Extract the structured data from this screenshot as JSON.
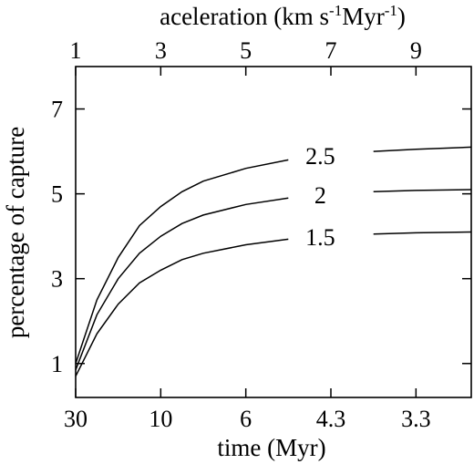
{
  "chart_data": {
    "type": "line",
    "title": "",
    "xlabel": "time (Myr)",
    "ylabel": "percentage of capture",
    "top_axis": {
      "label_main": "aceleration (km s",
      "label_exp1": "-1",
      "label_mid": "Myr",
      "label_exp2": "-1",
      "label_end": ")",
      "ticks": [
        "1",
        "3",
        "5",
        "7",
        "9"
      ],
      "range": [
        1,
        10.3
      ]
    },
    "x_ticks": [
      "30",
      "10",
      "6",
      "4.3",
      "3.3"
    ],
    "y_ticks": [
      1,
      3,
      5,
      7
    ],
    "ylim": [
      0.2,
      8
    ],
    "grid": false,
    "series": [
      {
        "name": "2.5",
        "points": [
          [
            1,
            1.0
          ],
          [
            1.5,
            2.5
          ],
          [
            2,
            3.5
          ],
          [
            2.5,
            4.25
          ],
          [
            3,
            4.7
          ],
          [
            3.5,
            5.05
          ],
          [
            4,
            5.3
          ],
          [
            5,
            5.6
          ],
          [
            6,
            5.8
          ],
          [
            7,
            5.92
          ],
          [
            8,
            6.0
          ],
          [
            9,
            6.05
          ],
          [
            10.3,
            6.1
          ]
        ]
      },
      {
        "name": "2",
        "points": [
          [
            1,
            0.85
          ],
          [
            1.5,
            2.15
          ],
          [
            2,
            3.0
          ],
          [
            2.5,
            3.6
          ],
          [
            3,
            4.0
          ],
          [
            3.5,
            4.3
          ],
          [
            4,
            4.5
          ],
          [
            5,
            4.75
          ],
          [
            6,
            4.9
          ],
          [
            7,
            5.0
          ],
          [
            8,
            5.05
          ],
          [
            9,
            5.08
          ],
          [
            10.3,
            5.1
          ]
        ]
      },
      {
        "name": "1.5",
        "points": [
          [
            1,
            0.7
          ],
          [
            1.5,
            1.7
          ],
          [
            2,
            2.4
          ],
          [
            2.5,
            2.9
          ],
          [
            3,
            3.2
          ],
          [
            3.5,
            3.45
          ],
          [
            4,
            3.6
          ],
          [
            5,
            3.8
          ],
          [
            6,
            3.93
          ],
          [
            7,
            4.0
          ],
          [
            8,
            4.05
          ],
          [
            9,
            4.08
          ],
          [
            10.3,
            4.1
          ]
        ]
      }
    ]
  }
}
